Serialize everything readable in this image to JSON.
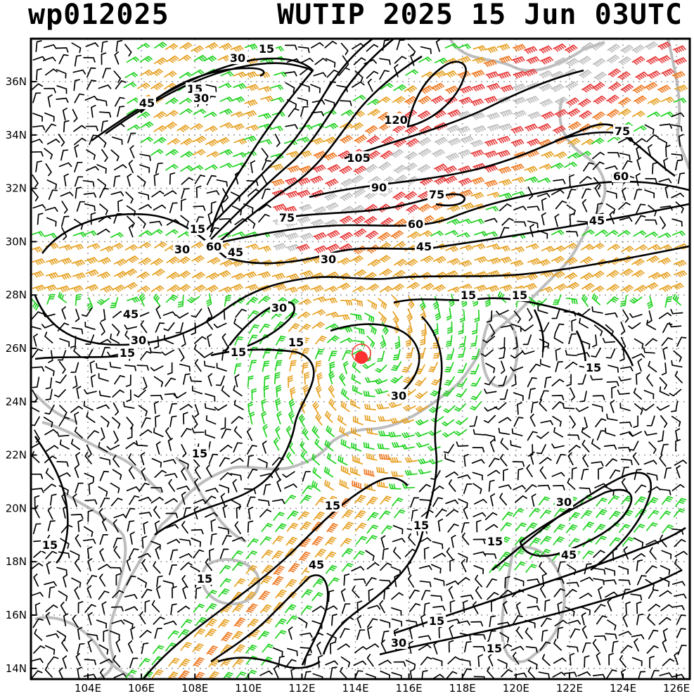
{
  "header": {
    "storm_id": "wp012025",
    "storm_time": "WUTIP 2025 15 Jun 03UTC"
  },
  "axes": {
    "lon_labels": [
      "104E",
      "106E",
      "108E",
      "110E",
      "112E",
      "114E",
      "116E",
      "118E",
      "120E",
      "122E",
      "124E",
      "126E"
    ],
    "lat_labels": [
      "36N",
      "34N",
      "32N",
      "30N",
      "28N",
      "26N",
      "24N",
      "22N",
      "20N",
      "18N",
      "16N",
      "14N"
    ]
  },
  "contour_labels": [
    "15",
    "30",
    "45",
    "15",
    "30",
    "45",
    "30",
    "60",
    "15",
    "75",
    "120",
    "105",
    "90",
    "75",
    "60",
    "75",
    "60",
    "45",
    "45",
    "30",
    "45",
    "30",
    "15",
    "15",
    "15",
    "15",
    "15",
    "15",
    "30",
    "15",
    "30",
    "15",
    "15",
    "30",
    "45",
    "45",
    "15",
    "15",
    "15",
    "15",
    "30",
    "15"
  ],
  "colors": {
    "calm": "#000000",
    "low": "#1ed21e",
    "mid": "#e6a020",
    "high": "#f07820",
    "max": "#e83a3a",
    "very_high": "#bdbdbd",
    "coast": "#bdbdbd",
    "storm": "#ff3030"
  },
  "storm_marker_icon": "typhoon-center-icon"
}
